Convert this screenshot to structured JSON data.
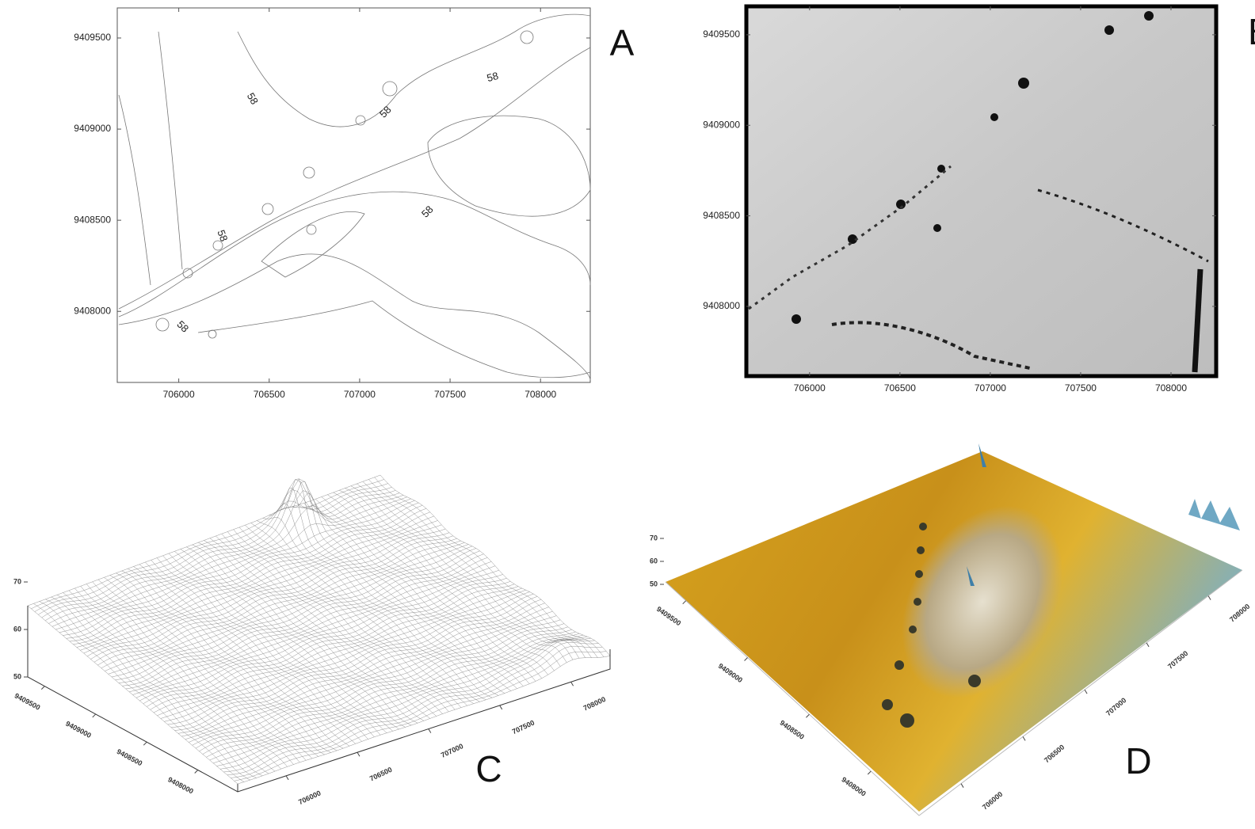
{
  "panels": [
    {
      "label": "A",
      "xlim": [
        705660,
        708275
      ],
      "ylim": [
        9407610,
        9409665
      ],
      "xticks": [
        706000,
        706500,
        707000,
        707500,
        708000
      ],
      "yticks": [
        9408000,
        9408500,
        9409000,
        9409500
      ],
      "contour_labels": [
        58,
        58,
        58,
        58,
        58,
        58
      ]
    },
    {
      "label": "B",
      "xlim": [
        705650,
        708250
      ],
      "ylim": [
        9407615,
        9409657
      ],
      "xticks": [
        706000,
        706500,
        707000,
        707500,
        708000
      ],
      "yticks": [
        9408000,
        9408500,
        9409000,
        9409500
      ]
    },
    {
      "label": "C",
      "xlim": [
        705660,
        708275
      ],
      "ylim": [
        9407610,
        9409665
      ],
      "zlim": [
        50,
        70
      ],
      "xticks": [
        706000,
        706500,
        707000,
        707500,
        708000
      ],
      "yticks": [
        9408000,
        9408500,
        9409000,
        9409500
      ],
      "zticks": [
        50,
        60,
        70
      ]
    },
    {
      "label": "D",
      "xlim": [
        705660,
        708275
      ],
      "ylim": [
        9407610,
        9409665
      ],
      "zlim": [
        50,
        70
      ],
      "xticks": [
        706000,
        706500,
        707000,
        707500,
        708000
      ],
      "yticks": [
        9408000,
        9408500,
        9409000,
        9409500
      ],
      "zticks": [
        50,
        60,
        70
      ]
    }
  ]
}
